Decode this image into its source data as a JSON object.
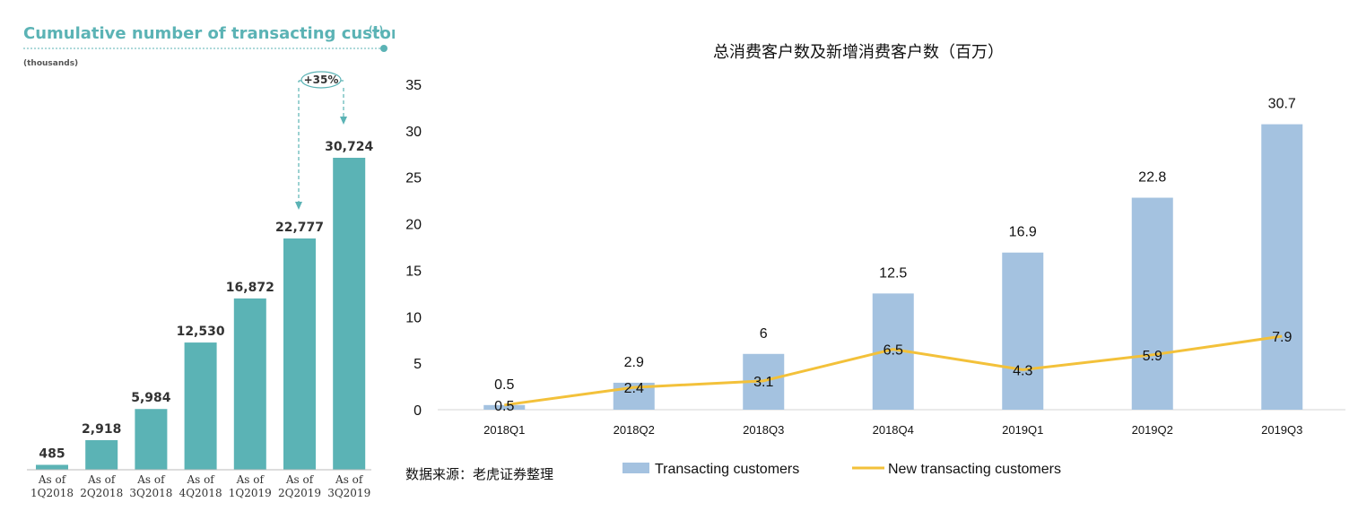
{
  "chart_data": [
    {
      "type": "bar",
      "title": "Cumulative number of transacting customers",
      "title_footnote": "(1)",
      "subtitle": "(thousands)",
      "categories": [
        [
          "As of",
          "1Q2018"
        ],
        [
          "As of",
          "2Q2018"
        ],
        [
          "As of",
          "3Q2018"
        ],
        [
          "As of",
          "4Q2018"
        ],
        [
          "As of",
          "1Q2019"
        ],
        [
          "As of",
          "2Q2019"
        ],
        [
          "As of",
          "3Q2019"
        ]
      ],
      "values": [
        485,
        2918,
        5984,
        12530,
        16872,
        22777,
        30724
      ],
      "value_labels": [
        "485",
        "2,918",
        "5,984",
        "12,530",
        "16,872",
        "22,777",
        "30,724"
      ],
      "annotation": "+35%",
      "color": "#5bb3b5"
    },
    {
      "type": "bar",
      "title": "总消费客户数及新增消费客户数（百万）",
      "categories": [
        "2018Q1",
        "2018Q2",
        "2018Q3",
        "2018Q4",
        "2019Q1",
        "2019Q2",
        "2019Q3"
      ],
      "ylim": [
        0,
        35
      ],
      "yticks": [
        0,
        5,
        10,
        15,
        20,
        25,
        30,
        35
      ],
      "series": [
        {
          "name": "Transacting customers",
          "type": "bar",
          "color": "#a4c2e0",
          "values": [
            0.5,
            2.9,
            6,
            12.5,
            16.9,
            22.8,
            30.7
          ],
          "labels": [
            "0.5",
            "2.9",
            "6",
            "12.5",
            "16.9",
            "22.8",
            "30.7"
          ]
        },
        {
          "name": "New transacting customers",
          "type": "line",
          "color": "#f3c13a",
          "values": [
            0.5,
            2.4,
            3.1,
            6.5,
            4.3,
            5.9,
            7.9
          ],
          "labels": [
            "0.5",
            "2.4",
            "3.1",
            "6.5",
            "4.3",
            "5.9",
            "7.9"
          ]
        }
      ],
      "source": "数据来源：老虎证券整理",
      "grid": false,
      "legend": "bottom"
    }
  ]
}
